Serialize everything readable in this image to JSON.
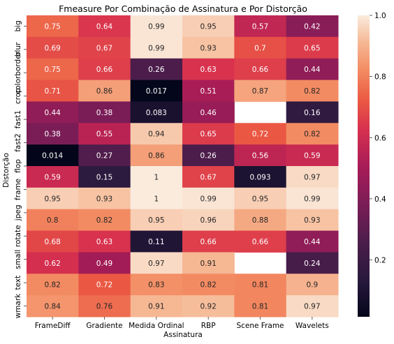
{
  "chart_data": {
    "type": "heatmap",
    "title": "Fmeasure Por Combinação de Assinatura e Por Distorção",
    "xlabel": "Assinatura",
    "ylabel": "Distorção",
    "columns": [
      "FrameDiff",
      "Gradiente",
      "Medida Ordinal",
      "RBP",
      "Scene Frame",
      "Wavelets"
    ],
    "rows": [
      "big",
      "blur",
      "colorborder",
      "crop",
      "crop",
      "fast1",
      "fast2",
      "flop",
      "frame",
      "jpeg",
      "rotate",
      "small",
      "text",
      "wmark"
    ],
    "row_labels_shown": [
      "big",
      "blur",
      "colorborder",
      "crop",
      "fast1",
      "fast2",
      "flop",
      "frame",
      "jpeg",
      "rotate",
      "small",
      "text",
      "wmark"
    ],
    "values": [
      [
        0.75,
        0.64,
        0.99,
        0.95,
        0.57,
        0.42
      ],
      [
        0.69,
        0.67,
        0.99,
        0.93,
        0.7,
        0.65
      ],
      [
        0.75,
        0.66,
        0.26,
        0.63,
        0.66,
        0.44
      ],
      [
        0.71,
        0.86,
        0.017,
        0.51,
        0.87,
        0.82
      ],
      [
        0.44,
        0.38,
        0.083,
        0.46,
        null,
        0.16
      ],
      [
        0.38,
        0.55,
        0.94,
        0.65,
        0.72,
        0.82
      ],
      [
        0.014,
        0.27,
        0.86,
        0.26,
        0.56,
        0.59
      ],
      [
        0.59,
        0.15,
        1,
        0.67,
        0.093,
        0.97
      ],
      [
        0.95,
        0.93,
        1,
        0.99,
        0.95,
        0.99
      ],
      [
        0.8,
        0.82,
        0.95,
        0.96,
        0.88,
        0.93
      ],
      [
        0.68,
        0.63,
        0.11,
        0.66,
        0.66,
        0.44
      ],
      [
        0.62,
        0.49,
        0.97,
        0.91,
        null,
        0.24
      ],
      [
        0.82,
        0.72,
        0.83,
        0.82,
        0.81,
        0.9
      ],
      [
        0.84,
        0.76,
        0.91,
        0.92,
        0.81,
        0.97
      ]
    ],
    "value_labels": [
      [
        "0.75",
        "0.64",
        "0.99",
        "0.95",
        "0.57",
        "0.42"
      ],
      [
        "0.69",
        "0.67",
        "0.99",
        "0.93",
        "0.7",
        "0.65"
      ],
      [
        "0.75",
        "0.66",
        "0.26",
        "0.63",
        "0.66",
        "0.44"
      ],
      [
        "0.71",
        "0.86",
        "0.017",
        "0.51",
        "0.87",
        "0.82"
      ],
      [
        "0.44",
        "0.38",
        "0.083",
        "0.46",
        "",
        "0.16"
      ],
      [
        "0.38",
        "0.55",
        "0.94",
        "0.65",
        "0.72",
        "0.82"
      ],
      [
        "0.014",
        "0.27",
        "0.86",
        "0.26",
        "0.56",
        "0.59"
      ],
      [
        "0.59",
        "0.15",
        "1",
        "0.67",
        "0.093",
        "0.97"
      ],
      [
        "0.95",
        "0.93",
        "1",
        "0.99",
        "0.95",
        "0.99"
      ],
      [
        "0.8",
        "0.82",
        "0.95",
        "0.96",
        "0.88",
        "0.93"
      ],
      [
        "0.68",
        "0.63",
        "0.11",
        "0.66",
        "0.66",
        "0.44"
      ],
      [
        "0.62",
        "0.49",
        "0.97",
        "0.91",
        "",
        "0.24"
      ],
      [
        "0.82",
        "0.72",
        "0.83",
        "0.82",
        "0.81",
        "0.9"
      ],
      [
        "0.84",
        "0.76",
        "0.91",
        "0.92",
        "0.81",
        "0.97"
      ]
    ],
    "colorbar": {
      "ticks": [
        "0.2",
        "0.4",
        "0.6",
        "0.8",
        "1.0"
      ],
      "range": [
        0.014,
        1.0
      ],
      "colormap": "rocket"
    }
  }
}
